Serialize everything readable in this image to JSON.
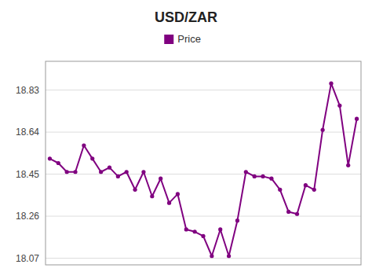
{
  "chart_data": {
    "type": "line",
    "title": "USD/ZAR",
    "series": [
      {
        "name": "Price",
        "color": "#800080",
        "marker": "circle",
        "line_style": "solid",
        "values": [
          18.52,
          18.5,
          18.46,
          18.46,
          18.58,
          18.52,
          18.46,
          18.48,
          18.44,
          18.46,
          18.38,
          18.46,
          18.35,
          18.43,
          18.32,
          18.36,
          18.2,
          18.19,
          18.17,
          18.08,
          18.2,
          18.08,
          18.24,
          18.46,
          18.44,
          18.44,
          18.43,
          18.38,
          18.28,
          18.27,
          18.4,
          18.38,
          18.65,
          18.86,
          18.76,
          18.49,
          18.7
        ]
      }
    ],
    "ylim": [
      18.04,
      18.96
    ],
    "yticks": [
      18.07,
      18.26,
      18.45,
      18.64,
      18.83
    ],
    "grid": true,
    "legend": "top",
    "tick_labels": "y"
  }
}
